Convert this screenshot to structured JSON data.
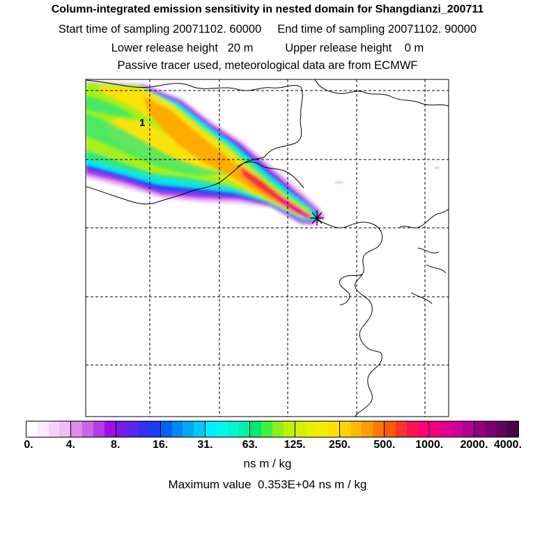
{
  "title": {
    "line1": "Column-integrated emission sensitivity in nested domain for Shangdianzi_200711",
    "line2": "Start time of sampling 20071102. 60000     End time of sampling 20071102. 90000",
    "line3": "Lower release height   20 m          Upper release height    0 m",
    "line4": "Passive tracer used, meteorological data are from ECMWF"
  },
  "map": {
    "plume_label": "1",
    "release_marker": "Shangdianzi release site"
  },
  "colorbar": {
    "tick_labels": [
      "0.",
      "4.",
      "8.",
      "16.",
      "31.",
      "63.",
      "125.",
      "250.",
      "500.",
      "1000.",
      "2000.",
      "4000."
    ],
    "units": "ns m / kg",
    "bins": [
      [
        "#ffffff",
        "#fde9fd",
        "#f7d2f7",
        "#f1bcf1"
      ],
      [
        "#df8be6",
        "#c964e6",
        "#b53be6",
        "#9e10e6"
      ],
      [
        "#7a1ce6",
        "#5a28ee",
        "#3a2ef2",
        "#1e3af5"
      ],
      [
        "#0062f2",
        "#0088f2",
        "#00a8f5",
        "#00c8f8"
      ],
      [
        "#00ecff",
        "#00f8ec",
        "#00f5cc",
        "#00f0aa"
      ],
      [
        "#00e870",
        "#40f040",
        "#8cf01c",
        "#bef000"
      ],
      [
        "#d4f000",
        "#e6f000",
        "#f5ec00",
        "#fce000"
      ],
      [
        "#ffd200",
        "#ffb800",
        "#ff9a00",
        "#ff7800"
      ],
      [
        "#ff5a00",
        "#ff3030",
        "#ff1450",
        "#ff0078"
      ],
      [
        "#f00080",
        "#e0008c",
        "#cc0098",
        "#b00090"
      ],
      [
        "#900080",
        "#780070",
        "#600060",
        "#480048"
      ]
    ]
  },
  "max_value": "Maximum value  0.353E+04 ns m / kg"
}
